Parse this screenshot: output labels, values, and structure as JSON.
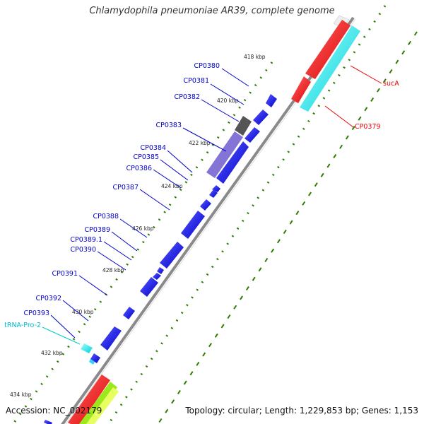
{
  "title": "Chlamydophila pneumoniae AR39, complete genome",
  "footer": {
    "accession": "Accession: NC_002179",
    "summary": "Topology: circular; Length: 1,229,853 bp; Genes: 1,153"
  },
  "colors": {
    "forward_gene": "#0000ff",
    "reverse_gene": "#ff0000",
    "rna": "#00e5ee",
    "tick": "#2e7d00",
    "backbone": "#888888",
    "highlight": "#7b6ad6",
    "grey_gene": "#606060"
  },
  "scale_labels": [
    "418 kbp",
    "420 kbp",
    "422 kbp",
    "424 kbp",
    "426 kbp",
    "428 kbp",
    "430 kbp",
    "432 kbp",
    "434 kbp"
  ],
  "left_labels": [
    "CP0380",
    "CP0381",
    "CP0382",
    "CP0383",
    "CP0384",
    "CP0385",
    "CP0386",
    "CP0387",
    "CP0388",
    "CP0389",
    "CP0389.1",
    "CP0390",
    "CP0391",
    "CP0392",
    "CP0393",
    "tRNA-Pro-2"
  ],
  "right_labels": [
    "sucA",
    "CP0379"
  ]
}
